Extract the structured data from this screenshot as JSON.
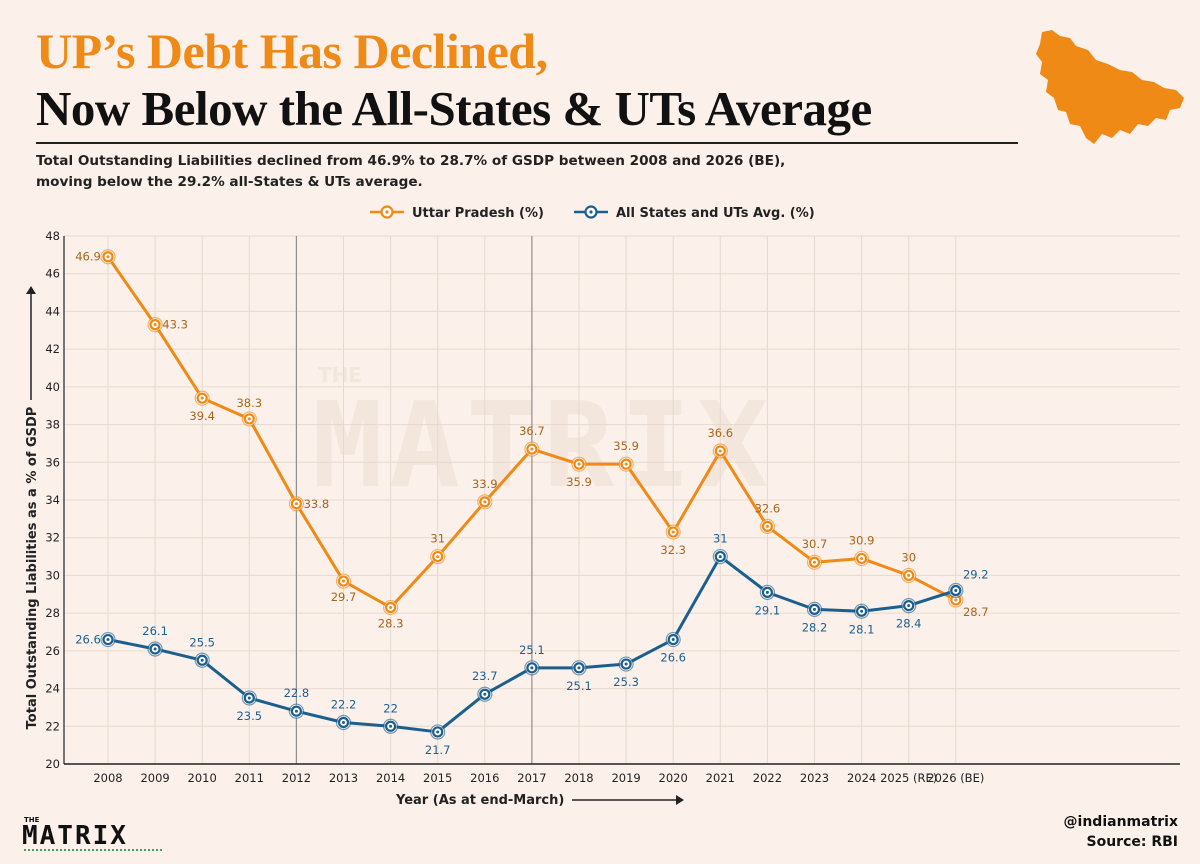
{
  "header": {
    "title_line1": "UP’s Debt Has Declined,",
    "title_line2": "Now Below the All-States & UTs Average",
    "subtitle_line1": "Total Outstanding Liabilities declined from 46.9% to 28.7% of GSDP between 2008 and 2026 (BE),",
    "subtitle_line2": "moving below the 29.2% all-States & UTs average."
  },
  "colors": {
    "up": "#ef8a17",
    "up_label": "#a8641c",
    "avg": "#1b5f8f",
    "avg_label": "#1b5f8f",
    "grid": "#e7d9cf",
    "axis": "#222222",
    "map": "#ef8a17"
  },
  "chart_data": {
    "type": "line",
    "title": "UP’s Debt Has Declined, Now Below the All-States & UTs Average",
    "xlabel": "Year (As at end-March)",
    "ylabel": "Total Outstanding Liabilities as a % of GSDP",
    "ylim": [
      20,
      48
    ],
    "yticks": [
      20,
      22,
      24,
      26,
      28,
      30,
      32,
      34,
      36,
      38,
      40,
      42,
      44,
      46,
      48
    ],
    "grid": true,
    "legend_position": "top-center",
    "categories": [
      "2008",
      "2009",
      "2010",
      "2011",
      "2012",
      "2013",
      "2014",
      "2015",
      "2016",
      "2017",
      "2018",
      "2019",
      "2020",
      "2021",
      "2022",
      "2023",
      "2024",
      "2025 (RE)",
      "2026 (BE)"
    ],
    "reference_lines": [
      "2012",
      "2017"
    ],
    "series": [
      {
        "name": "Uttar Pradesh (%)",
        "values": [
          46.9,
          43.3,
          39.4,
          38.3,
          33.8,
          29.7,
          28.3,
          31,
          33.9,
          36.7,
          35.9,
          35.9,
          32.3,
          36.6,
          32.6,
          30.7,
          30.9,
          30,
          28.7
        ],
        "labels": [
          "46.9",
          "43.3",
          "39.4",
          "38.3",
          "33.8",
          "29.7",
          "28.3",
          "31",
          "33.9",
          "36.7",
          "35.9",
          "35.9",
          "32.3",
          "36.6",
          "32.6",
          "30.7",
          "30.9",
          "30",
          "28.7"
        ]
      },
      {
        "name": "All States and UTs Avg. (%)",
        "values": [
          26.6,
          26.1,
          25.5,
          23.5,
          22.8,
          22.2,
          22,
          21.7,
          23.7,
          25.1,
          25.1,
          25.3,
          26.6,
          31,
          29.1,
          28.2,
          28.1,
          28.4,
          29.2
        ],
        "labels": [
          "26.6",
          "26.1",
          "25.5",
          "23.5",
          "22.8",
          "22.2",
          "22",
          "21.7",
          "23.7",
          "25.1",
          "25.1",
          "25.3",
          "26.6",
          "31",
          "29.1",
          "28.2",
          "28.1",
          "28.4",
          "29.2"
        ]
      }
    ]
  },
  "watermark": {
    "small": "THE",
    "big": "MATRIX"
  },
  "footer": {
    "brand_small": "THE",
    "brand_big": "MATRIX",
    "handle": "@indianmatrix",
    "source": "Source: RBI"
  }
}
